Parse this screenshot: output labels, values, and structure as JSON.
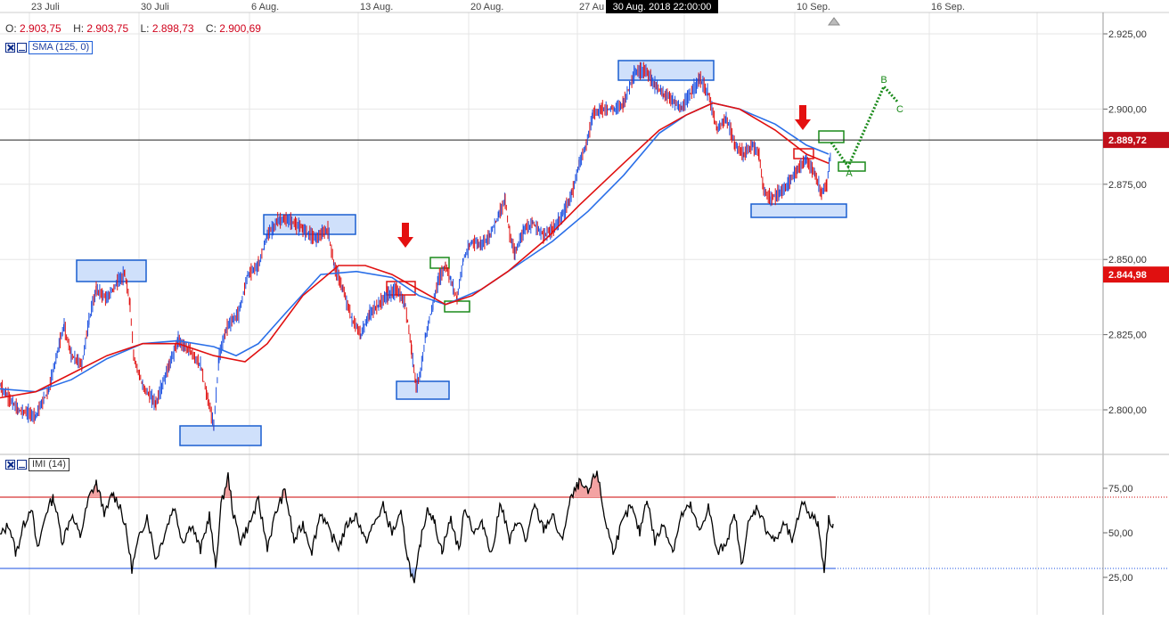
{
  "header": {
    "ohlc": [
      {
        "label": "O:",
        "value": "2.903,75"
      },
      {
        "label": "H:",
        "value": "2.903,75"
      },
      {
        "label": "L:",
        "value": "2.898,73"
      },
      {
        "label": "C:",
        "value": "2.900,69"
      }
    ],
    "crosshair_date": "30 Aug. 2018 22:00:00"
  },
  "indicators": {
    "sma_label": "SMA (125, 0)",
    "imi_label": "IMI (14)"
  },
  "colors": {
    "up": "#1a4fe0",
    "down": "#e01010",
    "sma": "#2a6fe8",
    "ema": "#e01010",
    "box_blue_fill": "#cfe0fb",
    "box_blue_stroke": "#1a5fd0",
    "box_green": "#1a8a1a",
    "box_red": "#e01010",
    "price_label_bg": "#c0101a"
  },
  "chart_data": {
    "type": "line",
    "x_ticks": [
      "23 Juli",
      "30 Juli",
      "6 Aug.",
      "13 Aug.",
      "20 Aug.",
      "27 Au",
      "10 Sep.",
      "16 Sep."
    ],
    "y_ticks": [
      "2.925,00",
      "2.900,00",
      "2.875,00",
      "2.850,00",
      "2.825,00",
      "2.800,00"
    ],
    "ylim": [
      2790,
      2930
    ],
    "price_series": [
      [
        0,
        2808
      ],
      [
        20,
        2800
      ],
      [
        40,
        2798
      ],
      [
        55,
        2807
      ],
      [
        65,
        2820
      ],
      [
        72,
        2828
      ],
      [
        80,
        2818
      ],
      [
        92,
        2815
      ],
      [
        100,
        2830
      ],
      [
        108,
        2840
      ],
      [
        120,
        2837
      ],
      [
        133,
        2843
      ],
      [
        140,
        2845
      ],
      [
        146,
        2835
      ],
      [
        150,
        2818
      ],
      [
        160,
        2808
      ],
      [
        175,
        2802
      ],
      [
        190,
        2815
      ],
      [
        200,
        2823
      ],
      [
        212,
        2820
      ],
      [
        225,
        2815
      ],
      [
        232,
        2805
      ],
      [
        240,
        2795
      ],
      [
        246,
        2818
      ],
      [
        255,
        2828
      ],
      [
        268,
        2832
      ],
      [
        278,
        2845
      ],
      [
        290,
        2848
      ],
      [
        300,
        2858
      ],
      [
        312,
        2863
      ],
      [
        325,
        2863
      ],
      [
        340,
        2860
      ],
      [
        355,
        2857
      ],
      [
        368,
        2860
      ],
      [
        375,
        2848
      ],
      [
        385,
        2840
      ],
      [
        395,
        2830
      ],
      [
        405,
        2825
      ],
      [
        415,
        2832
      ],
      [
        425,
        2835
      ],
      [
        435,
        2838
      ],
      [
        445,
        2840
      ],
      [
        455,
        2835
      ],
      [
        462,
        2820
      ],
      [
        467,
        2808
      ],
      [
        472,
        2812
      ],
      [
        478,
        2825
      ],
      [
        486,
        2835
      ],
      [
        492,
        2843
      ],
      [
        500,
        2848
      ],
      [
        506,
        2843
      ],
      [
        513,
        2837
      ],
      [
        520,
        2850
      ],
      [
        530,
        2856
      ],
      [
        540,
        2855
      ],
      [
        550,
        2858
      ],
      [
        560,
        2865
      ],
      [
        567,
        2870
      ],
      [
        572,
        2858
      ],
      [
        578,
        2852
      ],
      [
        588,
        2860
      ],
      [
        598,
        2862
      ],
      [
        610,
        2858
      ],
      [
        620,
        2860
      ],
      [
        632,
        2865
      ],
      [
        642,
        2872
      ],
      [
        650,
        2882
      ],
      [
        658,
        2888
      ],
      [
        665,
        2898
      ],
      [
        675,
        2900
      ],
      [
        690,
        2900
      ],
      [
        700,
        2902
      ],
      [
        712,
        2912
      ],
      [
        725,
        2913
      ],
      [
        735,
        2908
      ],
      [
        745,
        2905
      ],
      [
        755,
        2903
      ],
      [
        765,
        2900
      ],
      [
        775,
        2905
      ],
      [
        785,
        2910
      ],
      [
        795,
        2905
      ],
      [
        805,
        2893
      ],
      [
        815,
        2897
      ],
      [
        825,
        2888
      ],
      [
        835,
        2885
      ],
      [
        845,
        2888
      ],
      [
        852,
        2885
      ],
      [
        857,
        2873
      ],
      [
        865,
        2870
      ],
      [
        875,
        2872
      ],
      [
        885,
        2875
      ],
      [
        895,
        2880
      ],
      [
        905,
        2883
      ],
      [
        915,
        2878
      ],
      [
        922,
        2872
      ],
      [
        928,
        2875
      ],
      [
        933,
        2887
      ]
    ],
    "imi_series": [
      [
        0,
        48
      ],
      [
        10,
        55
      ],
      [
        18,
        38
      ],
      [
        25,
        52
      ],
      [
        35,
        65
      ],
      [
        42,
        40
      ],
      [
        52,
        62
      ],
      [
        60,
        70
      ],
      [
        70,
        45
      ],
      [
        80,
        60
      ],
      [
        90,
        48
      ],
      [
        100,
        70
      ],
      [
        108,
        78
      ],
      [
        118,
        60
      ],
      [
        126,
        72
      ],
      [
        135,
        65
      ],
      [
        142,
        50
      ],
      [
        148,
        30
      ],
      [
        155,
        45
      ],
      [
        165,
        60
      ],
      [
        175,
        35
      ],
      [
        185,
        50
      ],
      [
        195,
        65
      ],
      [
        205,
        45
      ],
      [
        215,
        55
      ],
      [
        225,
        40
      ],
      [
        235,
        60
      ],
      [
        242,
        30
      ],
      [
        248,
        65
      ],
      [
        256,
        82
      ],
      [
        262,
        60
      ],
      [
        270,
        45
      ],
      [
        280,
        55
      ],
      [
        290,
        68
      ],
      [
        300,
        42
      ],
      [
        310,
        62
      ],
      [
        320,
        74
      ],
      [
        330,
        45
      ],
      [
        340,
        55
      ],
      [
        350,
        40
      ],
      [
        360,
        62
      ],
      [
        370,
        50
      ],
      [
        380,
        42
      ],
      [
        390,
        55
      ],
      [
        400,
        60
      ],
      [
        410,
        45
      ],
      [
        420,
        55
      ],
      [
        430,
        65
      ],
      [
        440,
        50
      ],
      [
        450,
        60
      ],
      [
        458,
        35
      ],
      [
        465,
        20
      ],
      [
        472,
        45
      ],
      [
        480,
        65
      ],
      [
        488,
        55
      ],
      [
        496,
        40
      ],
      [
        506,
        58
      ],
      [
        515,
        40
      ],
      [
        522,
        65
      ],
      [
        532,
        50
      ],
      [
        542,
        55
      ],
      [
        552,
        38
      ],
      [
        562,
        68
      ],
      [
        572,
        45
      ],
      [
        582,
        58
      ],
      [
        590,
        45
      ],
      [
        600,
        65
      ],
      [
        610,
        52
      ],
      [
        620,
        60
      ],
      [
        630,
        45
      ],
      [
        640,
        68
      ],
      [
        650,
        78
      ],
      [
        660,
        72
      ],
      [
        670,
        85
      ],
      [
        678,
        60
      ],
      [
        688,
        40
      ],
      [
        698,
        55
      ],
      [
        708,
        65
      ],
      [
        718,
        50
      ],
      [
        726,
        70
      ],
      [
        735,
        45
      ],
      [
        745,
        55
      ],
      [
        755,
        40
      ],
      [
        765,
        60
      ],
      [
        775,
        65
      ],
      [
        785,
        50
      ],
      [
        795,
        65
      ],
      [
        805,
        38
      ],
      [
        815,
        45
      ],
      [
        825,
        60
      ],
      [
        832,
        32
      ],
      [
        840,
        55
      ],
      [
        850,
        65
      ],
      [
        860,
        52
      ],
      [
        870,
        45
      ],
      [
        880,
        55
      ],
      [
        890,
        45
      ],
      [
        900,
        68
      ],
      [
        910,
        60
      ],
      [
        918,
        55
      ],
      [
        925,
        30
      ],
      [
        930,
        58
      ],
      [
        935,
        55
      ]
    ],
    "sma_series": [
      [
        0,
        2807
      ],
      [
        40,
        2806
      ],
      [
        80,
        2810
      ],
      [
        120,
        2817
      ],
      [
        160,
        2822
      ],
      [
        200,
        2823
      ],
      [
        240,
        2821
      ],
      [
        265,
        2818
      ],
      [
        290,
        2822
      ],
      [
        320,
        2832
      ],
      [
        360,
        2845
      ],
      [
        400,
        2846
      ],
      [
        440,
        2844
      ],
      [
        470,
        2838
      ],
      [
        500,
        2835
      ],
      [
        540,
        2840
      ],
      [
        580,
        2848
      ],
      [
        620,
        2856
      ],
      [
        660,
        2866
      ],
      [
        700,
        2878
      ],
      [
        740,
        2892
      ],
      [
        770,
        2898
      ],
      [
        800,
        2902
      ],
      [
        830,
        2900
      ],
      [
        870,
        2895
      ],
      [
        905,
        2888
      ],
      [
        930,
        2885
      ]
    ],
    "ema_series": [
      [
        0,
        2804
      ],
      [
        40,
        2806
      ],
      [
        80,
        2812
      ],
      [
        120,
        2818
      ],
      [
        160,
        2822
      ],
      [
        200,
        2822
      ],
      [
        240,
        2818
      ],
      [
        275,
        2816
      ],
      [
        300,
        2822
      ],
      [
        340,
        2838
      ],
      [
        380,
        2848
      ],
      [
        410,
        2848
      ],
      [
        440,
        2845
      ],
      [
        470,
        2840
      ],
      [
        500,
        2835
      ],
      [
        530,
        2838
      ],
      [
        570,
        2846
      ],
      [
        610,
        2856
      ],
      [
        650,
        2868
      ],
      [
        700,
        2882
      ],
      [
        740,
        2893
      ],
      [
        770,
        2898
      ],
      [
        800,
        2902
      ],
      [
        830,
        2900
      ],
      [
        870,
        2893
      ],
      [
        905,
        2885
      ],
      [
        930,
        2882
      ]
    ],
    "imi_ticks": [
      "75,00",
      "50,00",
      "25,00"
    ],
    "price_labels": [
      {
        "value": "2.889,72"
      },
      {
        "value": "2.844,98"
      }
    ],
    "wave_labels": [
      "A",
      "B",
      "C"
    ]
  }
}
